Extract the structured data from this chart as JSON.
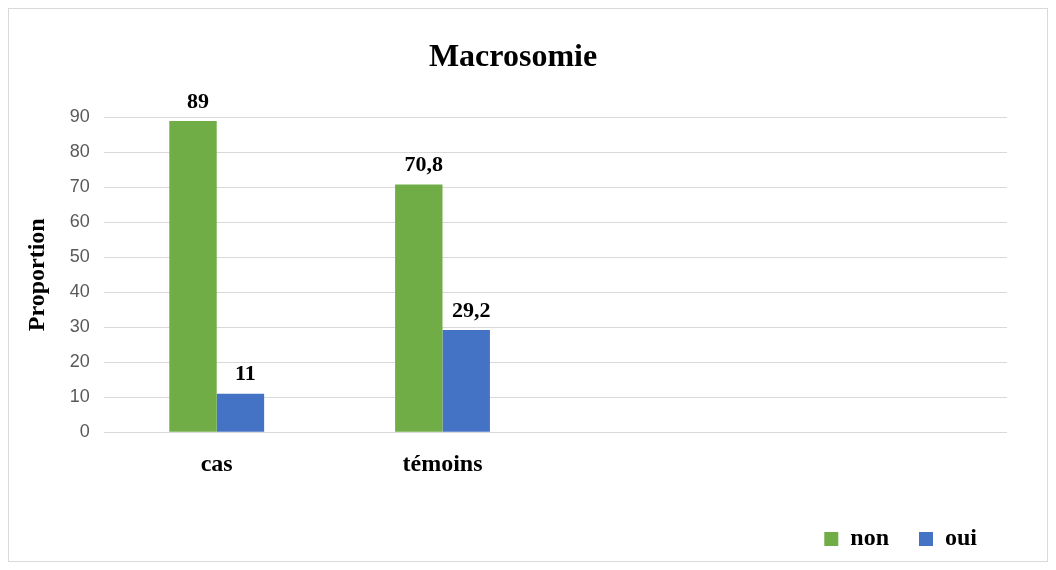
{
  "chart_data": {
    "type": "bar",
    "title": "Macrosomie",
    "ylabel": "Proportion",
    "categories": [
      "cas",
      "témoins",
      null,
      null
    ],
    "series": [
      {
        "name": "non",
        "color": "#70ad47",
        "values": [
          89,
          70.8,
          null,
          null
        ],
        "value_labels": [
          "89",
          "70,8",
          null,
          null
        ]
      },
      {
        "name": "oui",
        "color": "#4472c4",
        "values": [
          11,
          29.2,
          null,
          null
        ],
        "value_labels": [
          "11",
          "29,2",
          null,
          null
        ]
      }
    ],
    "ylim": [
      0,
      90
    ],
    "yticks": [
      0,
      10,
      20,
      30,
      40,
      50,
      60,
      70,
      80,
      90
    ],
    "grid": "y",
    "legend": "bottom right"
  }
}
